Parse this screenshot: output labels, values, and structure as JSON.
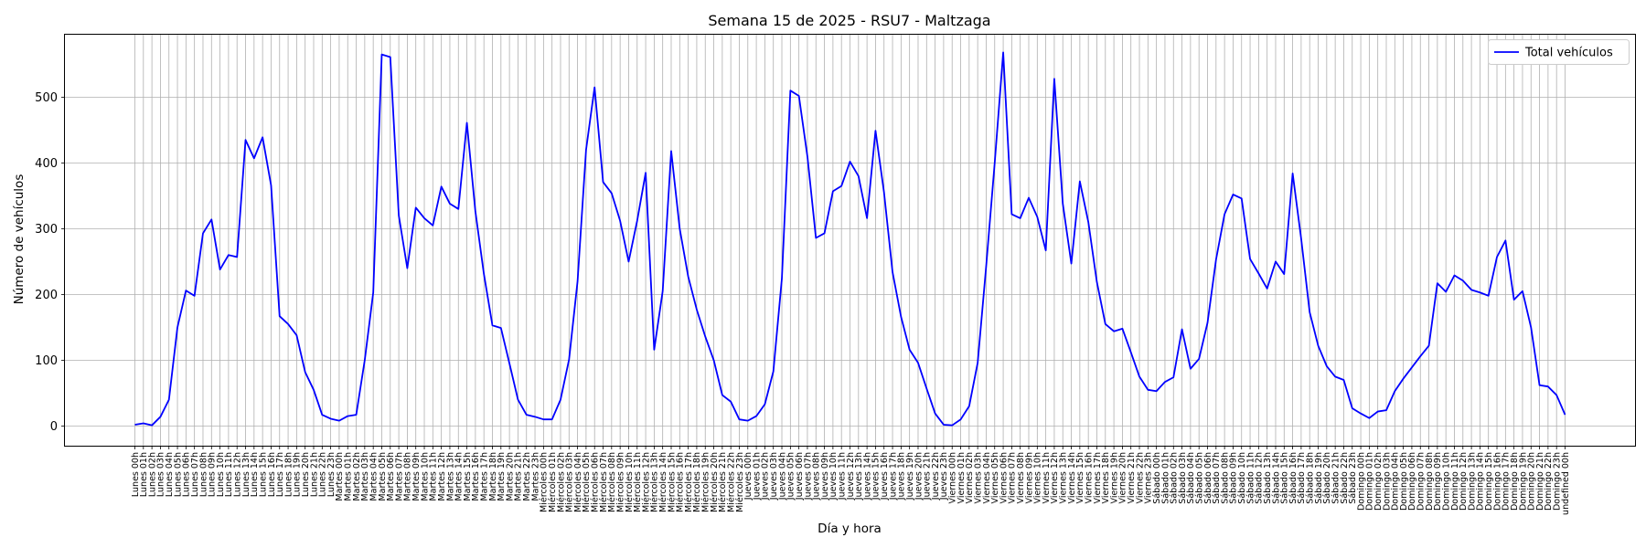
{
  "chart_data": {
    "type": "line",
    "title": "Semana 15 de 2025 - RSU7 - Maltzaga",
    "xlabel": "Día y hora",
    "ylabel": "Número de vehículos",
    "ylim": [
      -30,
      595
    ],
    "yticks": [
      0,
      100,
      200,
      300,
      400,
      500
    ],
    "grid": true,
    "legend_position": "top-right",
    "line_color": "#0000ff",
    "days": [
      "Lunes",
      "Martes",
      "Miércoles",
      "Jueves",
      "Viernes",
      "Sábado",
      "Domingo"
    ],
    "series": [
      {
        "name": "Total vehículos",
        "values": [
          2,
          4,
          1,
          14,
          40,
          150,
          206,
          198,
          293,
          314,
          238,
          260,
          257,
          435,
          407,
          439,
          366,
          167,
          155,
          138,
          82,
          55,
          17,
          11,
          8,
          15,
          17,
          100,
          203,
          565,
          561,
          320,
          240,
          332,
          316,
          305,
          364,
          338,
          330,
          461,
          326,
          231,
          153,
          149,
          95,
          40,
          17,
          14,
          10,
          10,
          40,
          101,
          220,
          420,
          515,
          371,
          354,
          312,
          250,
          312,
          385,
          116,
          205,
          418,
          300,
          227,
          177,
          136,
          100,
          47,
          37,
          10,
          8,
          15,
          33,
          83,
          224,
          510,
          502,
          410,
          286,
          293,
          357,
          365,
          402,
          380,
          316,
          449,
          355,
          234,
          166,
          116,
          96,
          57,
          19,
          2,
          1,
          10,
          30,
          96,
          243,
          400,
          568,
          322,
          316,
          347,
          318,
          267,
          528,
          338,
          247,
          372,
          310,
          219,
          155,
          144,
          148,
          112,
          75,
          55,
          53,
          67,
          74,
          147,
          87,
          102,
          157,
          253,
          322,
          352,
          346,
          254,
          232,
          209,
          250,
          231,
          384,
          285,
          173,
          122,
          91,
          75,
          70,
          27,
          19,
          12,
          22,
          24,
          53,
          72,
          89,
          106,
          122,
          217,
          204,
          229,
          221,
          207,
          203,
          198,
          257,
          282,
          192,
          205,
          150,
          62,
          60,
          47,
          17
        ]
      }
    ]
  }
}
